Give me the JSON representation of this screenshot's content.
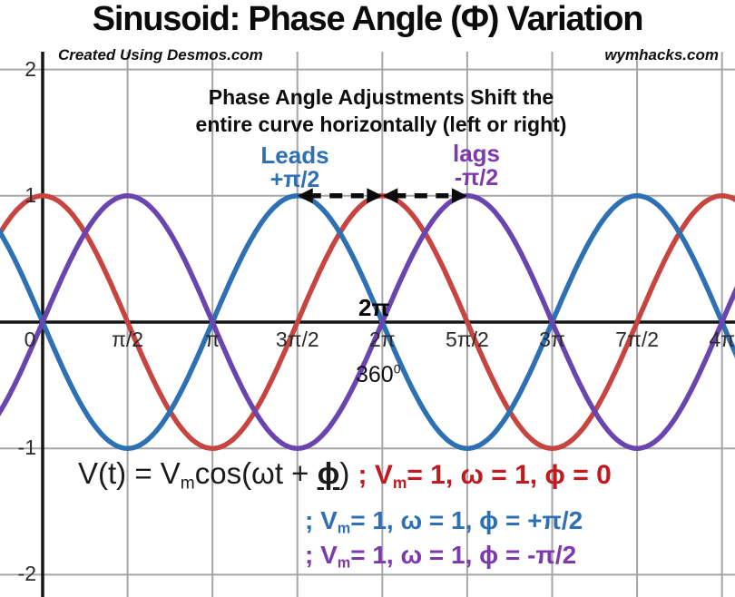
{
  "page": {
    "title": "Sinusoid: Phase Angle (Φ) Variation",
    "credit": "Created Using Desmos.com",
    "watermark": "wymhacks.com"
  },
  "note": {
    "line1": "Phase Angle Adjustments Shift the",
    "line2": "entire curve horizontally (left or right)"
  },
  "leads": {
    "label": "Leads",
    "value": "+π/2",
    "color": "#2e70b3"
  },
  "lags": {
    "label": "lags",
    "value": "-π/2",
    "color": "#7c3aad"
  },
  "period": {
    "radians": "2π",
    "degrees": "360",
    "degrees_sup": "0"
  },
  "formula": {
    "black": {
      "pre": "V(t) = V",
      "sub": "m",
      "mid": "cos(ωt + ",
      "phi": "ϕ",
      "close": ") ",
      "color": "#1b1b1b"
    },
    "red": {
      "pre": "; V",
      "sub": "m",
      "post": "= 1, ω = 1, ϕ = 0",
      "color": "#c01b20"
    },
    "blue": {
      "pre": "; V",
      "sub": "m",
      "post": "= 1, ω = 1, ϕ = +π/2",
      "color": "#2e70b3"
    },
    "purple": {
      "pre": "; V",
      "sub": "m",
      "post": "= 1, ω = 1, ϕ = -π/2",
      "color": "#7c3aad"
    }
  },
  "chart_data": {
    "type": "line",
    "title": "Sinusoid: Phase Angle (Φ) Variation",
    "xlabel": "",
    "ylabel": "",
    "grid": true,
    "xlim_radians": [
      -0.79,
      12.81
    ],
    "ylim": [
      -2.17,
      2.15
    ],
    "x_axis": {
      "ticks": [
        {
          "label": "0",
          "value_half_pi": 0
        },
        {
          "label": "π/2",
          "value_half_pi": 1
        },
        {
          "label": "π",
          "value_half_pi": 2
        },
        {
          "label": "3π/2",
          "value_half_pi": 3
        },
        {
          "label": "2π",
          "value_half_pi": 4
        },
        {
          "label": "5π/2",
          "value_half_pi": 5
        },
        {
          "label": "3π",
          "value_half_pi": 6
        },
        {
          "label": "7π/2",
          "value_half_pi": 7
        },
        {
          "label": "4π",
          "value_half_pi": 8
        }
      ]
    },
    "y_axis": {
      "ticks": [
        {
          "label": "2",
          "value": 2
        },
        {
          "label": "1",
          "value": 1
        },
        {
          "label": "-1",
          "value": -1
        },
        {
          "label": "-2",
          "value": -2
        }
      ]
    },
    "function": "V(t) = Vm·cos(ωt + ϕ)",
    "series": [
      {
        "name": "Vm = 1, ω = 1, ϕ = 0",
        "amplitude": 1,
        "omega": 1,
        "phase_radians": 0,
        "color": "#c74440"
      },
      {
        "name": "Vm = 1, ω = 1, ϕ = +π/2",
        "amplitude": 1,
        "omega": 1,
        "phase_radians": 1.5707963,
        "color": "#2d70b3"
      },
      {
        "name": "Vm = 1, ω = 1, ϕ = -π/2",
        "amplitude": 1,
        "omega": 1,
        "phase_radians": -1.5707963,
        "color": "#6a44af"
      }
    ],
    "annotations_arrows": [
      {
        "x1_radians": 4.712389,
        "x2_radians": 6.2831853,
        "y": 1,
        "style": "dashed-double-arrow"
      },
      {
        "x1_radians": 6.2831853,
        "x2_radians": 7.8539816,
        "y": 1,
        "style": "dashed-double-arrow"
      }
    ],
    "colors": {
      "grid": "#a6a6a6",
      "axis": "#151515",
      "arrow": "#0a0a0a"
    }
  }
}
